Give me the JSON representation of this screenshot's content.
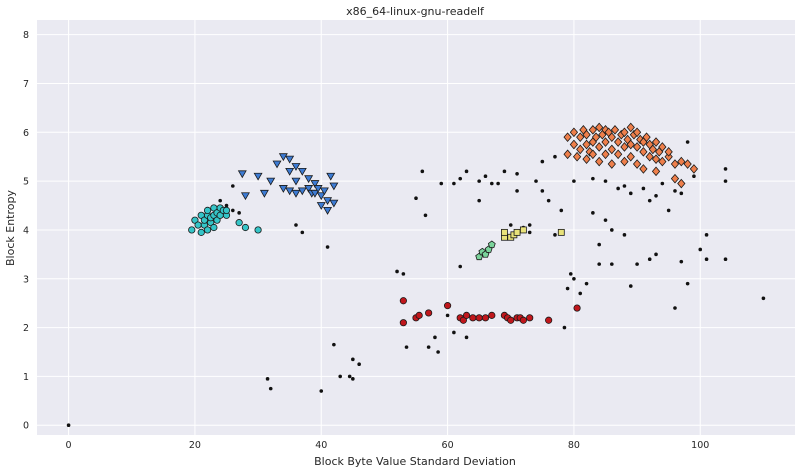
{
  "chart_data": {
    "type": "scatter",
    "title": "x86_64-linux-gnu-readelf",
    "xlabel": "Block Byte Value Standard Deviation",
    "ylabel": "Block Entropy",
    "xlim": [
      -5,
      115
    ],
    "ylim": [
      -0.2,
      8.3
    ],
    "xticks": [
      0,
      20,
      40,
      60,
      80,
      100
    ],
    "yticks": [
      0,
      1,
      2,
      3,
      4,
      5,
      6,
      7,
      8
    ],
    "grid": true,
    "background": "#eaeaf2",
    "series": [
      {
        "marker": "dot",
        "color": "#111111",
        "points": [
          [
            0,
            0
          ],
          [
            31.5,
            0.95
          ],
          [
            32,
            0.75
          ],
          [
            40,
            0.7
          ],
          [
            42,
            1.65
          ],
          [
            43,
            1.0
          ],
          [
            44.5,
            1.0
          ],
          [
            45,
            0.95
          ],
          [
            45,
            1.35
          ],
          [
            46,
            1.25
          ],
          [
            52,
            3.15
          ],
          [
            53,
            3.1
          ],
          [
            53.5,
            1.6
          ],
          [
            55,
            4.65
          ],
          [
            56,
            5.2
          ],
          [
            56.5,
            4.3
          ],
          [
            57,
            1.6
          ],
          [
            58,
            1.8
          ],
          [
            58.5,
            1.5
          ],
          [
            59,
            4.95
          ],
          [
            60,
            2.25
          ],
          [
            61,
            1.9
          ],
          [
            61,
            4.95
          ],
          [
            62,
            5.05
          ],
          [
            62,
            3.25
          ],
          [
            63,
            5.2
          ],
          [
            63,
            1.8
          ],
          [
            65,
            5.0
          ],
          [
            65,
            4.6
          ],
          [
            66,
            5.1
          ],
          [
            67,
            4.95
          ],
          [
            68,
            4.95
          ],
          [
            69,
            5.2
          ],
          [
            70,
            4.1
          ],
          [
            71,
            4.8
          ],
          [
            71,
            5.15
          ],
          [
            72,
            4.05
          ],
          [
            73,
            4.1
          ],
          [
            73,
            3.95
          ],
          [
            74,
            5.0
          ],
          [
            75,
            4.8
          ],
          [
            75,
            5.4
          ],
          [
            76,
            4.6
          ],
          [
            77,
            3.9
          ],
          [
            77,
            5.5
          ],
          [
            78,
            4.4
          ],
          [
            78.5,
            2.0
          ],
          [
            79,
            2.8
          ],
          [
            79.5,
            3.1
          ],
          [
            80,
            3.0
          ],
          [
            80,
            5.0
          ],
          [
            81,
            2.7
          ],
          [
            82,
            2.9
          ],
          [
            83,
            4.35
          ],
          [
            83,
            5.05
          ],
          [
            84,
            3.3
          ],
          [
            84,
            3.7
          ],
          [
            85,
            4.2
          ],
          [
            85,
            5.0
          ],
          [
            86,
            4.0
          ],
          [
            86,
            3.3
          ],
          [
            87,
            4.85
          ],
          [
            88,
            4.9
          ],
          [
            88,
            3.9
          ],
          [
            89,
            4.75
          ],
          [
            89,
            2.85
          ],
          [
            90,
            3.3
          ],
          [
            91,
            4.85
          ],
          [
            92,
            3.4
          ],
          [
            92,
            4.6
          ],
          [
            93,
            4.7
          ],
          [
            93,
            3.5
          ],
          [
            94,
            4.95
          ],
          [
            95,
            4.4
          ],
          [
            96,
            2.4
          ],
          [
            96,
            4.8
          ],
          [
            97,
            3.35
          ],
          [
            97,
            4.75
          ],
          [
            98,
            2.9
          ],
          [
            98,
            5.8
          ],
          [
            99,
            5.1
          ],
          [
            100,
            3.6
          ],
          [
            101,
            3.9
          ],
          [
            101,
            3.4
          ],
          [
            104,
            5.0
          ],
          [
            104,
            5.25
          ],
          [
            104,
            3.4
          ],
          [
            110,
            2.6
          ],
          [
            24,
            4.6
          ],
          [
            25,
            4.5
          ],
          [
            26,
            4.4
          ],
          [
            27,
            4.35
          ],
          [
            36,
            4.1
          ],
          [
            37,
            3.95
          ],
          [
            41,
            3.65
          ],
          [
            26,
            4.9
          ]
        ]
      },
      {
        "marker": "circle",
        "color": "#35c5c8",
        "points": [
          [
            19.5,
            4.0
          ],
          [
            20,
            4.2
          ],
          [
            20.5,
            4.1
          ],
          [
            21,
            4.3
          ],
          [
            21,
            3.95
          ],
          [
            21.5,
            4.1
          ],
          [
            21.5,
            4.2
          ],
          [
            22,
            4.0
          ],
          [
            22,
            4.3
          ],
          [
            22,
            4.4
          ],
          [
            22.5,
            4.15
          ],
          [
            22.5,
            4.25
          ],
          [
            23,
            4.05
          ],
          [
            23,
            4.3
          ],
          [
            23,
            4.45
          ],
          [
            23.5,
            4.2
          ],
          [
            23.5,
            4.35
          ],
          [
            24,
            4.3
          ],
          [
            24,
            4.45
          ],
          [
            24.5,
            4.4
          ],
          [
            25,
            4.3
          ],
          [
            25,
            4.4
          ],
          [
            27,
            4.15
          ],
          [
            28,
            4.05
          ],
          [
            30,
            4.0
          ]
        ]
      },
      {
        "marker": "triangle-down",
        "color": "#3d7bd3",
        "points": [
          [
            27.5,
            5.15
          ],
          [
            28,
            4.7
          ],
          [
            30,
            5.1
          ],
          [
            31,
            4.75
          ],
          [
            32,
            5.0
          ],
          [
            33,
            5.35
          ],
          [
            34,
            5.5
          ],
          [
            34,
            4.85
          ],
          [
            35,
            5.45
          ],
          [
            35,
            5.2
          ],
          [
            35,
            4.8
          ],
          [
            36,
            5.3
          ],
          [
            36,
            5.0
          ],
          [
            36,
            4.75
          ],
          [
            37,
            5.2
          ],
          [
            37,
            4.8
          ],
          [
            38,
            5.05
          ],
          [
            38,
            4.85
          ],
          [
            38.5,
            4.75
          ],
          [
            39,
            4.95
          ],
          [
            39,
            4.75
          ],
          [
            39.5,
            4.85
          ],
          [
            40,
            4.7
          ],
          [
            40,
            4.5
          ],
          [
            40.5,
            4.8
          ],
          [
            41,
            4.6
          ],
          [
            41,
            4.4
          ],
          [
            41.5,
            5.1
          ],
          [
            42,
            4.9
          ],
          [
            42,
            4.55
          ]
        ]
      },
      {
        "marker": "square",
        "color": "#e8e27a",
        "points": [
          [
            69,
            3.85
          ],
          [
            69,
            3.95
          ],
          [
            70,
            3.85
          ],
          [
            70.5,
            3.9
          ],
          [
            71,
            3.95
          ],
          [
            72,
            4.0
          ],
          [
            78,
            3.95
          ]
        ]
      },
      {
        "marker": "pentagon",
        "color": "#7ad39b",
        "points": [
          [
            65,
            3.45
          ],
          [
            65.5,
            3.55
          ],
          [
            66,
            3.5
          ],
          [
            66.5,
            3.6
          ],
          [
            67,
            3.7
          ]
        ]
      },
      {
        "marker": "circle",
        "color": "#c0171c",
        "points": [
          [
            53,
            2.55
          ],
          [
            53,
            2.1
          ],
          [
            55,
            2.2
          ],
          [
            55.5,
            2.25
          ],
          [
            57,
            2.3
          ],
          [
            60,
            2.45
          ],
          [
            62,
            2.2
          ],
          [
            62.5,
            2.15
          ],
          [
            63,
            2.25
          ],
          [
            64,
            2.2
          ],
          [
            65,
            2.2
          ],
          [
            66,
            2.2
          ],
          [
            67,
            2.25
          ],
          [
            69,
            2.25
          ],
          [
            69.5,
            2.2
          ],
          [
            70,
            2.15
          ],
          [
            71,
            2.2
          ],
          [
            71.5,
            2.2
          ],
          [
            72,
            2.15
          ],
          [
            73,
            2.2
          ],
          [
            76,
            2.15
          ],
          [
            80.5,
            2.4
          ]
        ]
      },
      {
        "marker": "diamond",
        "color": "#ee7f4b",
        "points": [
          [
            79,
            5.9
          ],
          [
            79,
            5.55
          ],
          [
            80,
            6.0
          ],
          [
            80,
            5.75
          ],
          [
            80.5,
            5.5
          ],
          [
            81,
            5.9
          ],
          [
            81,
            5.65
          ],
          [
            81.5,
            6.05
          ],
          [
            82,
            5.45
          ],
          [
            82,
            5.75
          ],
          [
            82,
            5.95
          ],
          [
            82.5,
            5.6
          ],
          [
            83,
            6.05
          ],
          [
            83,
            5.8
          ],
          [
            83,
            5.55
          ],
          [
            83.5,
            5.9
          ],
          [
            84,
            6.1
          ],
          [
            84,
            5.7
          ],
          [
            84,
            5.4
          ],
          [
            84.5,
            5.95
          ],
          [
            85,
            6.05
          ],
          [
            85,
            5.8
          ],
          [
            85,
            5.55
          ],
          [
            85.5,
            6.0
          ],
          [
            86,
            5.9
          ],
          [
            86,
            5.65
          ],
          [
            86,
            5.35
          ],
          [
            86.5,
            6.05
          ],
          [
            87,
            5.8
          ],
          [
            87,
            5.55
          ],
          [
            87.5,
            5.95
          ],
          [
            88,
            6.0
          ],
          [
            88,
            5.7
          ],
          [
            88,
            5.4
          ],
          [
            88.5,
            5.85
          ],
          [
            89,
            6.1
          ],
          [
            89,
            5.75
          ],
          [
            89,
            5.5
          ],
          [
            89.5,
            5.95
          ],
          [
            90,
            6.0
          ],
          [
            90,
            5.7
          ],
          [
            90,
            5.35
          ],
          [
            90.5,
            5.85
          ],
          [
            91,
            5.8
          ],
          [
            91,
            5.6
          ],
          [
            91,
            5.25
          ],
          [
            91.5,
            5.9
          ],
          [
            92,
            5.75
          ],
          [
            92,
            5.5
          ],
          [
            92.5,
            5.65
          ],
          [
            93,
            5.8
          ],
          [
            93,
            5.45
          ],
          [
            93,
            5.2
          ],
          [
            93.5,
            5.6
          ],
          [
            94,
            5.7
          ],
          [
            94,
            5.4
          ],
          [
            95,
            5.5
          ],
          [
            95,
            5.6
          ],
          [
            96,
            5.35
          ],
          [
            96,
            5.05
          ],
          [
            97,
            5.4
          ],
          [
            97,
            4.95
          ],
          [
            98,
            5.35
          ],
          [
            99,
            5.25
          ]
        ]
      }
    ]
  }
}
